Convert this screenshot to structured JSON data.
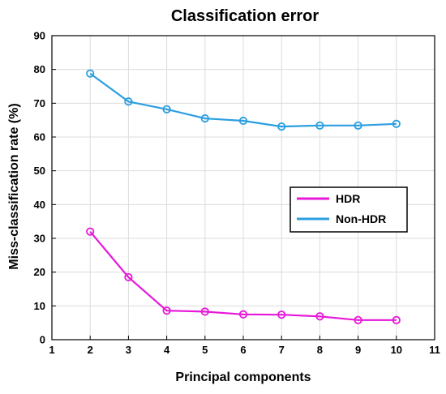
{
  "chart_data": {
    "type": "line",
    "title": "Classification error",
    "xlabel": "Principal components",
    "ylabel": "Miss-classification rate (%)",
    "xlim": [
      1,
      11
    ],
    "ylim": [
      0,
      90
    ],
    "xticks": [
      "1",
      "2",
      "3",
      "4",
      "5",
      "6",
      "7",
      "8",
      "9",
      "10",
      "11"
    ],
    "yticks": [
      "0",
      "10",
      "20",
      "30",
      "40",
      "50",
      "60",
      "70",
      "80",
      "90"
    ],
    "grid": true,
    "legend_position": "right",
    "x": [
      2,
      3,
      4,
      5,
      6,
      7,
      8,
      9,
      10
    ],
    "series": [
      {
        "name": "HDR",
        "color": "#e619d9",
        "marker": "circle",
        "values": [
          32,
          18.5,
          8.6,
          8.3,
          7.5,
          7.4,
          6.9,
          5.8,
          5.8
        ]
      },
      {
        "name": "Non-HDR",
        "color": "#2b9fe0",
        "marker": "circle",
        "values": [
          78.8,
          70.5,
          68.2,
          65.5,
          64.8,
          63.1,
          63.4,
          63.4,
          63.9
        ]
      }
    ]
  }
}
